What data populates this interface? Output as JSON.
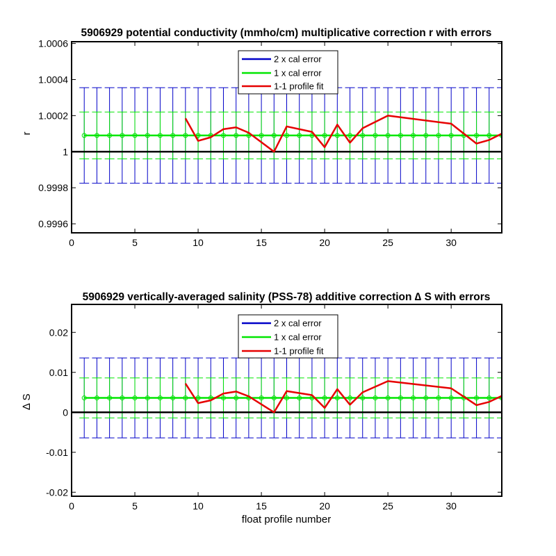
{
  "colors": {
    "blue": "#0000c8",
    "green": "#00e600",
    "red": "#e60000",
    "black": "#000000"
  },
  "legend": {
    "entries": [
      "2 x cal error",
      "1 x cal error",
      "1-1 profile fit"
    ],
    "position": "top-center"
  },
  "chart_data": [
    {
      "type": "line",
      "title": "5906929 potential conductivity (mmho/cm) multiplicative correction r with errors",
      "xlabel": "",
      "ylabel": "r",
      "xlim": [
        0,
        34
      ],
      "ylim": [
        0.99955,
        1.00061
      ],
      "xticks": [
        0,
        5,
        10,
        15,
        20,
        25,
        30
      ],
      "xtick_labels": [
        "0",
        "5",
        "10",
        "15",
        "20",
        "25",
        "30"
      ],
      "yticks": [
        0.9996,
        0.9998,
        1,
        1.0002,
        1.0004,
        1.0006
      ],
      "ytick_labels": [
        "0.9996",
        "0.9998",
        "1",
        "1.0002",
        "1.0004",
        "1.0006"
      ],
      "reference_line": 1,
      "cal_center": 1.00009,
      "err_2x": 0.000265,
      "err_1x": 0.00013,
      "error_x": [
        1,
        2,
        3,
        4,
        5,
        6,
        7,
        8,
        9,
        10,
        11,
        12,
        13,
        14,
        15,
        16,
        17,
        18,
        19,
        20,
        21,
        22,
        23,
        24,
        25,
        26,
        27,
        28,
        29,
        30,
        31,
        32,
        33,
        34
      ],
      "fit_x": [
        9,
        10,
        11,
        12,
        13,
        14,
        16,
        17,
        19,
        20,
        21,
        22,
        23,
        25,
        30,
        32,
        33,
        34
      ],
      "fit_y": [
        1.000185,
        1.00006,
        1.00008,
        1.000125,
        1.000135,
        1.000105,
        1.0,
        1.00014,
        1.00011,
        1.000025,
        1.00015,
        1.00005,
        1.00013,
        1.0002,
        1.000155,
        1.000045,
        1.000065,
        1.0001
      ],
      "grid": false
    },
    {
      "type": "line",
      "title": "5906929 vertically-averaged salinity (PSS-78) additive correction ∆ S with errors",
      "xlabel": "float profile number",
      "ylabel": "∆ S",
      "xlim": [
        0,
        34
      ],
      "ylim": [
        -0.021,
        0.027
      ],
      "xticks": [
        0,
        5,
        10,
        15,
        20,
        25,
        30
      ],
      "xtick_labels": [
        "0",
        "5",
        "10",
        "15",
        "20",
        "25",
        "30"
      ],
      "yticks": [
        -0.02,
        -0.01,
        0,
        0.01,
        0.02
      ],
      "ytick_labels": [
        "-0.02",
        "-0.01",
        "0",
        "0.01",
        "0.02"
      ],
      "reference_line": 0,
      "cal_center": 0.0036,
      "err_2x": 0.01,
      "err_1x": 0.005,
      "error_x": [
        1,
        2,
        3,
        4,
        5,
        6,
        7,
        8,
        9,
        10,
        11,
        12,
        13,
        14,
        15,
        16,
        17,
        18,
        19,
        20,
        21,
        22,
        23,
        24,
        25,
        26,
        27,
        28,
        29,
        30,
        31,
        32,
        33,
        34
      ],
      "fit_x": [
        9,
        10,
        11,
        12,
        13,
        14,
        16,
        17,
        19,
        20,
        21,
        22,
        23,
        25,
        30,
        32,
        33,
        34
      ],
      "fit_y": [
        0.0072,
        0.0023,
        0.003,
        0.0047,
        0.0052,
        0.004,
        0.0,
        0.0053,
        0.0043,
        0.0011,
        0.0058,
        0.0019,
        0.005,
        0.0078,
        0.006,
        0.0018,
        0.0026,
        0.0041
      ],
      "grid": false
    }
  ]
}
